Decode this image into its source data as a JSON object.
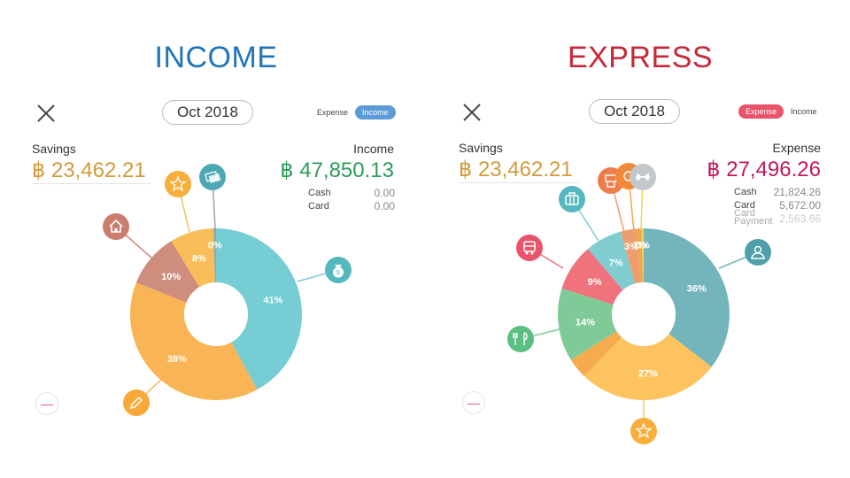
{
  "income": {
    "heading": "INCOME",
    "month": "Oct 2018",
    "toggle": {
      "expense_label": "Expense",
      "income_label": "Income",
      "active": "income"
    },
    "savings_label": "Savings",
    "savings_amount": "฿ 23,462.21",
    "total_label": "Income",
    "total_amount": "฿ 47,850.13",
    "breakdown": [
      {
        "label": "Cash",
        "value": "0.00"
      },
      {
        "label": "Card",
        "value": "0.00"
      }
    ],
    "colors": {
      "heading": "#2275b8",
      "accent": "#5b9bd8",
      "savings": "#d39a3a",
      "total": "#2e9b5a"
    }
  },
  "expense": {
    "heading": "EXPRESS",
    "month": "Oct 2018",
    "toggle": {
      "expense_label": "Expense",
      "income_label": "Income",
      "active": "expense"
    },
    "savings_label": "Savings",
    "savings_amount": "฿ 23,462.21",
    "total_label": "Expense",
    "total_amount": "฿ 27,496.26",
    "breakdown": [
      {
        "label": "Cash",
        "value": "21,824.26"
      },
      {
        "label": "Card",
        "value": "5,672.00"
      },
      {
        "label": "Card Payment",
        "value": "2,563.66"
      }
    ],
    "colors": {
      "heading": "#c8283a",
      "accent": "#e8546a",
      "savings": "#d39a3a",
      "total": "#c2185b"
    }
  },
  "chart_data": [
    {
      "type": "pie",
      "title": "",
      "slices": [
        {
          "label": "41%",
          "value": 41,
          "color": "#76cdd3",
          "icon": "money-bag-icon"
        },
        {
          "label": "38%",
          "value": 38,
          "color": "#f9b455",
          "icon": "pencil-icon"
        },
        {
          "label": "10%",
          "value": 10,
          "color": "#ce8d7d",
          "icon": "home-icon"
        },
        {
          "label": "8%",
          "value": 8,
          "color": "#f9be5a",
          "icon": "star-icon"
        },
        {
          "label": "0%",
          "value": 0.5,
          "color": "#9aa4a8",
          "icon": "cash-icon"
        }
      ]
    },
    {
      "type": "pie",
      "title": "",
      "slices": [
        {
          "label": "36%",
          "value": 36,
          "color": "#74b5bb",
          "icon": "user-icon"
        },
        {
          "label": "27%",
          "value": 27,
          "color": "#fdc35f",
          "icon": "star-icon"
        },
        {
          "label": "",
          "value": 4,
          "color": "#f5ab4e",
          "icon": ""
        },
        {
          "label": "14%",
          "value": 14,
          "color": "#7ecb98",
          "icon": "food-icon"
        },
        {
          "label": "9%",
          "value": 9,
          "color": "#ef727c",
          "icon": "bus-icon"
        },
        {
          "label": "7%",
          "value": 7,
          "color": "#7fcdd1",
          "icon": "briefcase-icon"
        },
        {
          "label": "3%",
          "value": 3,
          "color": "#ee9e6e",
          "icon": "receipt-icon"
        },
        {
          "label": "1%",
          "value": 1,
          "color": "#f0a64a",
          "icon": "coin-icon"
        },
        {
          "label": "0%",
          "value": 0.4,
          "color": "#f0d35a",
          "icon": "dumbbell-icon"
        }
      ]
    }
  ]
}
